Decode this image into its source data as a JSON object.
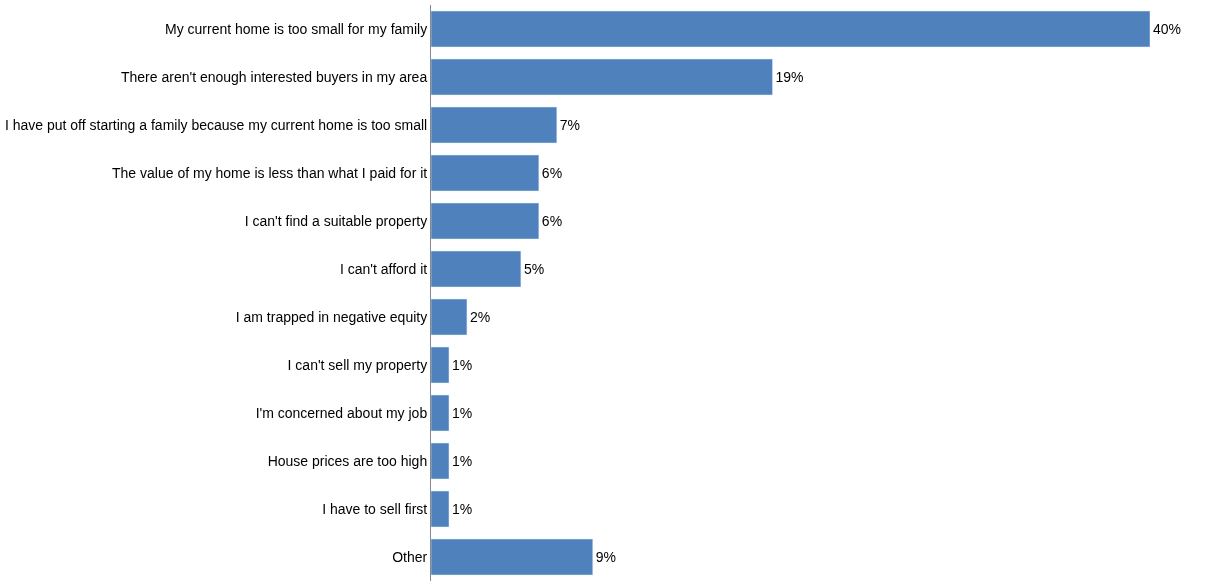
{
  "chart_data": {
    "type": "bar",
    "orientation": "horizontal",
    "categories": [
      "My current home is too small for my family",
      "There aren't enough interested buyers in my area",
      "I have put off starting a family because my current home is too small",
      "The value of my home is less than what I paid for it",
      "I can't find a suitable property",
      "I can't afford it",
      "I am trapped in negative equity",
      "I can't sell my property",
      "I'm concerned about my job",
      "House prices are too high",
      "I have to sell first",
      "Other"
    ],
    "values": [
      40,
      19,
      7,
      6,
      6,
      5,
      2,
      1,
      1,
      1,
      1,
      9
    ],
    "value_labels": [
      "40%",
      "19%",
      "7%",
      "6%",
      "6%",
      "5%",
      "2%",
      "1%",
      "1%",
      "1%",
      "1%",
      "9%"
    ],
    "color": "#4f81bd",
    "xlim": [
      0,
      40
    ],
    "legend": false,
    "tick_labels": "y"
  }
}
